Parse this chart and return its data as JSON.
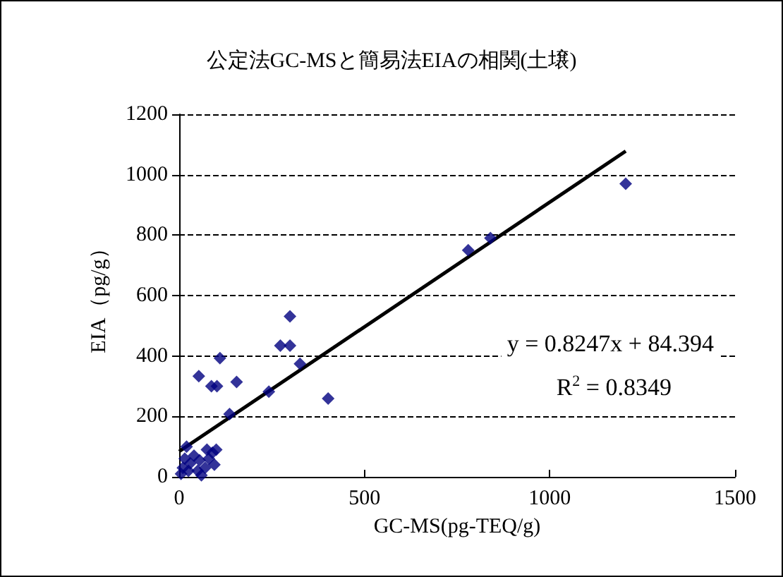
{
  "chart_data": {
    "type": "scatter",
    "title": "公定法GC-MSと簡易法EIAの相関(土壌)",
    "xlabel": "GC-MS(pg-TEQ/g)",
    "ylabel": "EIA（pg/g）",
    "xlim": [
      0,
      1500
    ],
    "xticks": [
      0,
      500,
      1000,
      1500
    ],
    "ylim": [
      0,
      1200
    ],
    "yticks": [
      0,
      200,
      400,
      600,
      800,
      1000,
      1200
    ],
    "grid": "y",
    "annotations": [
      "y = 0.8247x + 84.394",
      "R$^{2}$ = 0.8349"
    ],
    "series": [
      {
        "color": "#000080",
        "marker": "diamond",
        "x": [
          5,
          10,
          15,
          20,
          25,
          30,
          40,
          50,
          55,
          60,
          70,
          75,
          80,
          90,
          95,
          100,
          53,
          110,
          87,
          102,
          155,
          136,
          242,
          273,
          299,
          299,
          326,
          402,
          780,
          840,
          1205
        ],
        "values": [
          10,
          30,
          60,
          100,
          20,
          45,
          70,
          20,
          55,
          5,
          30,
          90,
          60,
          80,
          40,
          90,
          333,
          393,
          300,
          300,
          314,
          208,
          282,
          434,
          434,
          531,
          374,
          259,
          750,
          790,
          970
        ]
      },
      {
        "type": "line",
        "color": "#000000",
        "marker": "none",
        "x": [
          0,
          1205
        ],
        "values": [
          84,
          1078
        ]
      }
    ]
  }
}
